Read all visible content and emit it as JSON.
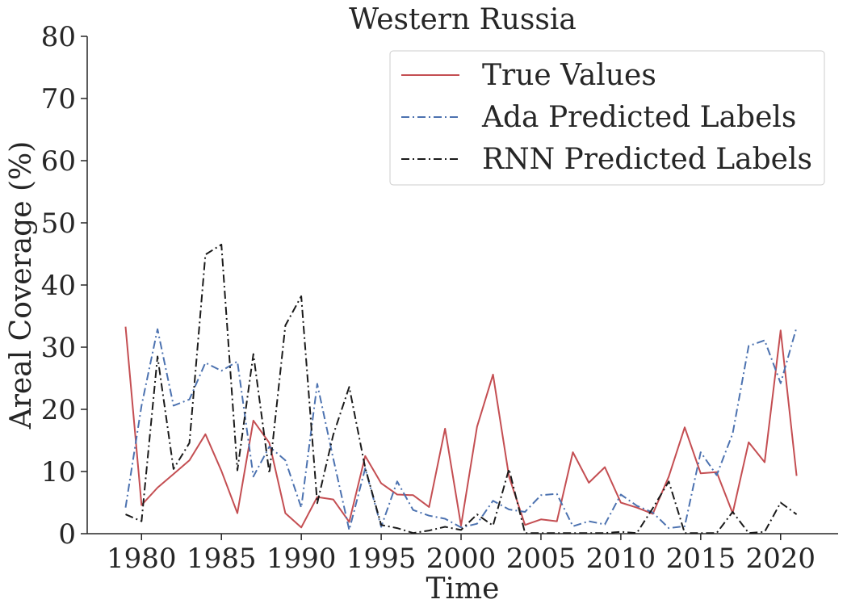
{
  "chart_data": {
    "type": "line",
    "title": "Western Russia",
    "xlabel": "Time",
    "ylabel": "Areal Coverage (%)",
    "xlim": [
      1976.6,
      2023.6
    ],
    "ylim": [
      0,
      80
    ],
    "xticks": [
      1980,
      1985,
      1990,
      1995,
      2000,
      2005,
      2010,
      2015,
      2020
    ],
    "yticks": [
      0,
      10,
      20,
      30,
      40,
      50,
      60,
      70,
      80
    ],
    "grid": false,
    "legend_position": "top-right",
    "x": [
      1979,
      1980,
      1981,
      1982,
      1983,
      1984,
      1985,
      1986,
      1987,
      1988,
      1989,
      1990,
      1991,
      1992,
      1993,
      1994,
      1995,
      1996,
      1997,
      1998,
      1999,
      2000,
      2001,
      2002,
      2003,
      2004,
      2005,
      2006,
      2007,
      2008,
      2009,
      2010,
      2011,
      2012,
      2013,
      2014,
      2015,
      2016,
      2017,
      2018,
      2019,
      2020,
      2021
    ],
    "series": [
      {
        "name": "True Values",
        "color": "#c44e52",
        "style": "solid",
        "values": [
          33.3,
          4.6,
          7.4,
          9.6,
          11.8,
          16.0,
          10.1,
          3.3,
          18.2,
          14.6,
          3.3,
          1.0,
          5.9,
          5.5,
          1.9,
          12.5,
          8.1,
          6.3,
          6.2,
          4.3,
          16.9,
          1.3,
          17.2,
          25.6,
          9.2,
          1.4,
          2.3,
          2.0,
          13.1,
          8.2,
          10.7,
          5.0,
          4.2,
          3.2,
          9.2,
          17.1,
          9.7,
          9.9,
          3.3,
          14.7,
          11.5,
          32.7,
          9.3
        ]
      },
      {
        "name": "Ada Predicted Labels",
        "color": "#4c72b0",
        "style": "dashdot",
        "values": [
          4.2,
          20.6,
          32.9,
          20.6,
          21.6,
          27.5,
          26.2,
          27.7,
          9.2,
          14.0,
          11.8,
          4.2,
          24.1,
          12.1,
          0.6,
          10.5,
          1.1,
          8.4,
          3.8,
          2.9,
          2.4,
          1.0,
          1.6,
          5.3,
          3.9,
          3.5,
          6.2,
          6.4,
          1.2,
          2.0,
          1.5,
          6.3,
          4.5,
          3.4,
          0.9,
          1.2,
          13.1,
          9.4,
          16.1,
          30.2,
          31.1,
          24.2,
          33.2
        ]
      },
      {
        "name": "RNN Predicted Labels",
        "color": "#1a1a1a",
        "style": "dashdot",
        "values": [
          3.1,
          2.0,
          28.5,
          10.4,
          14.6,
          44.9,
          46.5,
          10.2,
          28.9,
          9.7,
          33.5,
          38.2,
          4.9,
          15.9,
          23.6,
          10.6,
          1.4,
          0.9,
          0.1,
          0.5,
          1.1,
          0.6,
          3.1,
          1.3,
          10.4,
          0.1,
          0.1,
          0.1,
          0.1,
          0.1,
          0.1,
          0.3,
          0.1,
          4.1,
          8.4,
          0.1,
          0.1,
          0.1,
          3.5,
          0.1,
          0.3,
          5.0,
          3.1
        ]
      }
    ]
  }
}
